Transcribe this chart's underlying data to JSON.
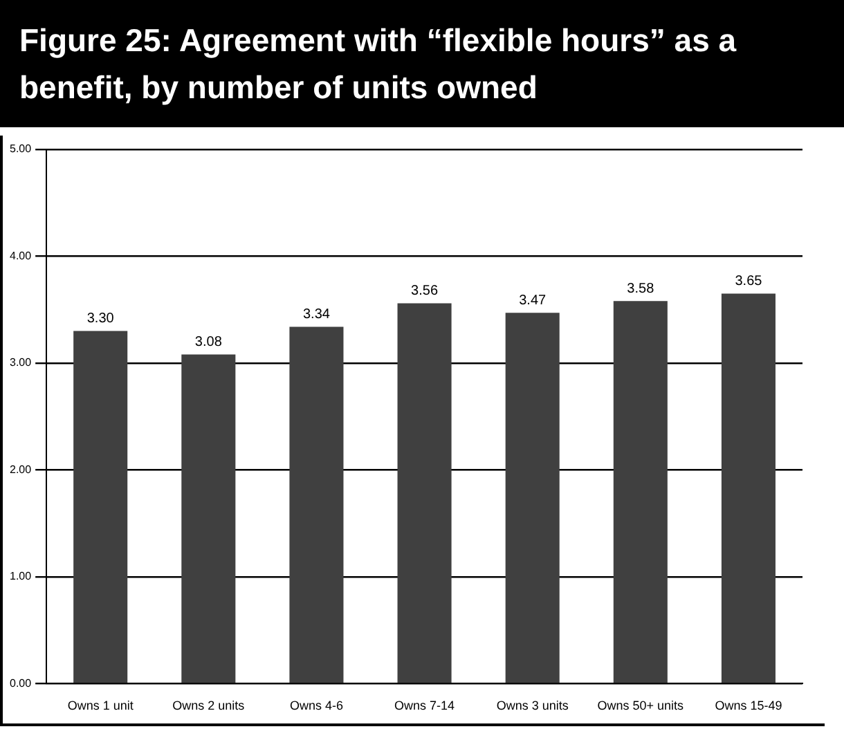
{
  "chart_data": {
    "type": "bar",
    "title": "Figure 25: Agreement with “flexible hours” as a benefit, by number of units owned",
    "categories": [
      "Owns 1 unit",
      "Owns 2 units",
      "Owns 4-6",
      "Owns 7-14",
      "Owns 3 units",
      "Owns 50+ units",
      "Owns 15-49"
    ],
    "values": [
      3.3,
      3.08,
      3.34,
      3.56,
      3.47,
      3.58,
      3.65
    ],
    "value_labels": [
      "3.30",
      "3.08",
      "3.34",
      "3.56",
      "3.47",
      "3.58",
      "3.65"
    ],
    "color": "#404040",
    "ylim": [
      0,
      5
    ],
    "yticks": [
      {
        "value": 0,
        "label": "0.00"
      },
      {
        "value": 1,
        "label": "1.00"
      },
      {
        "value": 2,
        "label": "2.00"
      },
      {
        "value": 3,
        "label": "3.00"
      },
      {
        "value": 4,
        "label": "4.00"
      },
      {
        "value": 5,
        "label": "5.00"
      }
    ],
    "grid": "y"
  }
}
